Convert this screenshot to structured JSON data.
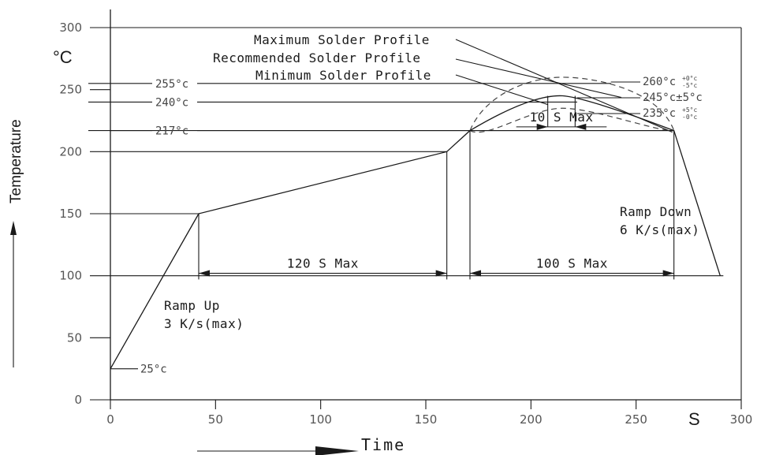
{
  "chart_data": {
    "type": "line",
    "title": "",
    "xlabel": "Time",
    "ylabel": "Temperature",
    "x_unit": "S",
    "y_unit": "°C",
    "xlim": [
      0,
      300
    ],
    "ylim": [
      0,
      300
    ],
    "x_ticks": [
      "0",
      "50",
      "100",
      "150",
      "200",
      "250",
      "300"
    ],
    "y_ticks": [
      "0",
      "50",
      "100",
      "150",
      "200",
      "250",
      "300"
    ],
    "grid": false,
    "legend": "none",
    "series": [
      {
        "name": "Recommended Solder Profile",
        "x": [
          0,
          42,
          160,
          171,
          215,
          268,
          290
        ],
        "y": [
          25,
          150,
          200,
          217,
          245,
          217,
          100
        ]
      },
      {
        "name": "Maximum Solder Profile",
        "x": [
          171,
          215,
          268
        ],
        "y": [
          217,
          260,
          217
        ]
      },
      {
        "name": "Minimum Solder Profile",
        "x": [
          171,
          215,
          268
        ],
        "y": [
          217,
          235,
          217
        ]
      }
    ],
    "temperature_markers": [
      {
        "label": "255°c",
        "value": 255
      },
      {
        "label": "240°c",
        "value": 240
      },
      {
        "label": "217°c",
        "value": 217
      },
      {
        "label": "25°c",
        "value": 25
      }
    ],
    "peak_labels": [
      {
        "main": "260°c",
        "tol_top": "+0°c",
        "tol_bot": "-5°c",
        "value": 260
      },
      {
        "main": "245°c±5°c",
        "tol_top": "",
        "tol_bot": "",
        "value": 245
      },
      {
        "main": "235°c",
        "tol_top": "+5°c",
        "tol_bot": "-0°c",
        "value": 235
      }
    ],
    "durations": [
      {
        "label": "120 S Max",
        "from": 42,
        "to": 160,
        "y": 102
      },
      {
        "label": "100 S Max",
        "from": 171,
        "to": 268,
        "y": 102
      },
      {
        "label": "10 S Max",
        "from": 208,
        "to": 221,
        "y": 220
      }
    ],
    "annotations": {
      "profile_max": "Maximum Solder Profile",
      "profile_rec": "Recommended Solder Profile",
      "profile_min": "Minimum Solder Profile",
      "ramp_up_1": "Ramp Up",
      "ramp_up_2": "3 K/s(max)",
      "ramp_down_1": "Ramp Down",
      "ramp_down_2": "6 K/s(max)"
    },
    "colors": {
      "line": "#1a1a1a",
      "dashed": "#444444"
    }
  }
}
